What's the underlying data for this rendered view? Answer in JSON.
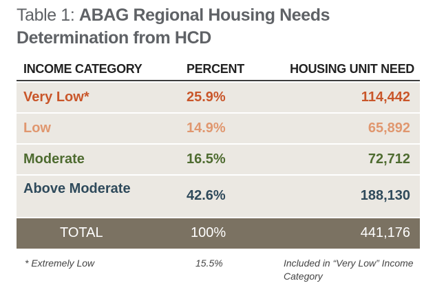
{
  "title": {
    "prefix": "Table 1: ",
    "main": "ABAG Regional Housing Needs Determination from HCD"
  },
  "table": {
    "headers": {
      "category": "INCOME CATEGORY",
      "percent": "PERCENT",
      "need": "HOUSING UNIT NEED"
    },
    "rows": [
      {
        "category": "Very Low*",
        "percent": "25.9%",
        "need": "114,442",
        "color": "#c9562a"
      },
      {
        "category": "Low",
        "percent": "14.9%",
        "need": "65,892",
        "color": "#e0976f"
      },
      {
        "category": "Moderate",
        "percent": "16.5%",
        "need": "72,712",
        "color": "#4e6b30"
      },
      {
        "category": "Above Moderate",
        "percent": "42.6%",
        "need": "188,130",
        "color": "#2f4a5b"
      }
    ],
    "total": {
      "category": "TOTAL",
      "percent": "100%",
      "need": "441,176",
      "background": "#7b7262"
    },
    "footnote": {
      "category": "* Extremely Low",
      "percent": "15.5%",
      "need": "Included in “Very Low” Income Category"
    }
  }
}
